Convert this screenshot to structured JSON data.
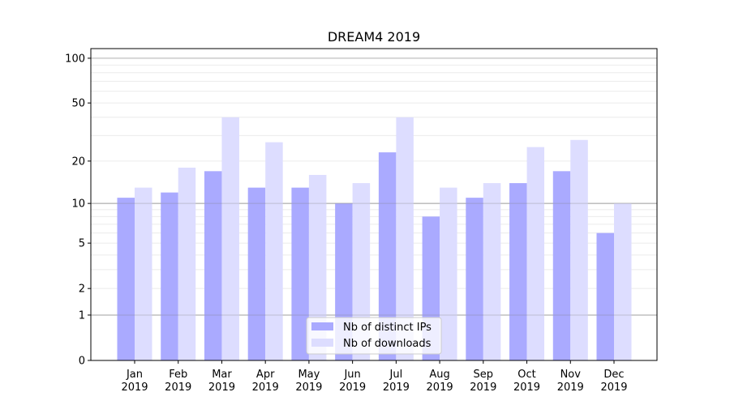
{
  "chart_data": {
    "type": "bar",
    "title": "DREAM4 2019",
    "xlabel": "",
    "ylabel": "",
    "yscale": "log(1+y)",
    "ylim": [
      0,
      116
    ],
    "grid": true,
    "legend_position": "bottom-center",
    "categories": [
      [
        "Jan",
        "2019"
      ],
      [
        "Feb",
        "2019"
      ],
      [
        "Mar",
        "2019"
      ],
      [
        "Apr",
        "2019"
      ],
      [
        "May",
        "2019"
      ],
      [
        "Jun",
        "2019"
      ],
      [
        "Jul",
        "2019"
      ],
      [
        "Aug",
        "2019"
      ],
      [
        "Sep",
        "2019"
      ],
      [
        "Oct",
        "2019"
      ],
      [
        "Nov",
        "2019"
      ],
      [
        "Dec",
        "2019"
      ]
    ],
    "yticks": [
      0,
      1,
      2,
      5,
      10,
      20,
      50,
      100
    ],
    "ytick_labels": [
      "0",
      "1",
      "2",
      "5",
      "10",
      "20",
      "50",
      "100"
    ],
    "series": [
      {
        "name": "Nb of distinct IPs",
        "color": "#aaaaff",
        "values": [
          11,
          12,
          17,
          13,
          13,
          10,
          23,
          8,
          11,
          14,
          17,
          6
        ]
      },
      {
        "name": "Nb of downloads",
        "color": "#ddddff",
        "values": [
          13,
          18,
          40,
          27,
          16,
          14,
          40,
          13,
          14,
          25,
          28,
          10
        ]
      }
    ]
  }
}
